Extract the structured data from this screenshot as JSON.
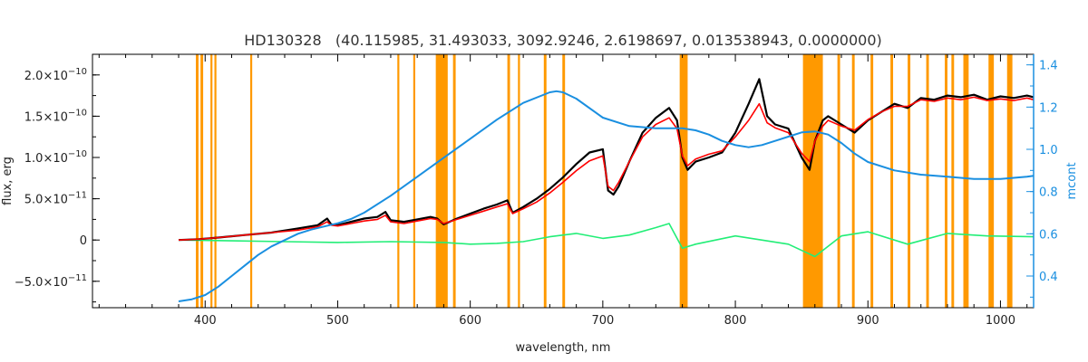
{
  "chart_data": {
    "type": "line",
    "title": "HD130328   (40.115985, 31.493033, 3092.9246, 2.6198697, 0.013538943, 0.0000000)",
    "xlabel": "wavelength, nm",
    "ylabel": "flux, erg",
    "y2label": "mcont",
    "xlim": [
      315,
      1025
    ],
    "ylim": [
      -8.2e-11,
      2.25e-10
    ],
    "y2lim": [
      0.25,
      1.45
    ],
    "xticks": [
      "400",
      "500",
      "600",
      "700",
      "800",
      "900",
      "1000"
    ],
    "xtick_values": [
      400,
      500,
      600,
      700,
      800,
      900,
      1000
    ],
    "yticks": [
      {
        "value": -5e-11,
        "mant": "−5.0×10",
        "exp": "−11"
      },
      {
        "value": 0,
        "mant": "0",
        "exp": ""
      },
      {
        "value": 5e-11,
        "mant": "5.0×10",
        "exp": "−11"
      },
      {
        "value": 1e-10,
        "mant": "1.0×10",
        "exp": "−10"
      },
      {
        "value": 1.5e-10,
        "mant": "1.5×10",
        "exp": "−10"
      },
      {
        "value": 2e-10,
        "mant": "2.0×10",
        "exp": "−10"
      }
    ],
    "y2ticks": [
      "0.4",
      "0.6",
      "0.8",
      "1.0",
      "1.2",
      "1.4"
    ],
    "y2tick_values": [
      0.4,
      0.6,
      0.8,
      1.0,
      1.2,
      1.4
    ],
    "colors": {
      "observed": "#000000",
      "model": "#ff0000",
      "residual": "#22ee77",
      "highlight": "#ffff00",
      "continuum": "#1a8fe0",
      "masked": "#ff9900",
      "axes": "#000000",
      "right_axis": "#1a8fe0"
    },
    "masked_regions": [
      [
        393,
        395
      ],
      [
        396.5,
        398.5
      ],
      [
        404,
        405.5
      ],
      [
        407,
        408.5
      ],
      [
        434,
        435.5
      ],
      [
        545,
        546.5
      ],
      [
        557,
        558.5
      ],
      [
        574,
        583
      ],
      [
        587,
        589
      ],
      [
        628,
        630
      ],
      [
        636,
        637.5
      ],
      [
        655.5,
        657.5
      ],
      [
        669.5,
        671.5
      ],
      [
        758,
        764
      ],
      [
        851,
        866
      ],
      [
        877,
        879
      ],
      [
        888,
        890
      ],
      [
        902,
        904
      ],
      [
        917,
        919
      ],
      [
        930,
        932
      ],
      [
        944,
        946
      ],
      [
        958,
        960
      ],
      [
        963,
        965
      ],
      [
        972,
        976
      ],
      [
        991,
        995
      ],
      [
        1005,
        1009
      ]
    ],
    "series": [
      {
        "name": "observed",
        "x": [
          380,
          395,
          410,
          430,
          450,
          470,
          485,
          492,
          495,
          500,
          510,
          520,
          530,
          536,
          540,
          550,
          560,
          570,
          575,
          580,
          590,
          600,
          610,
          620,
          628,
          632,
          640,
          650,
          660,
          670,
          680,
          690,
          700,
          704,
          708,
          712,
          720,
          730,
          740,
          750,
          756,
          760,
          764,
          770,
          780,
          790,
          800,
          810,
          818,
          824,
          830,
          840,
          850,
          856,
          860,
          866,
          870,
          880,
          890,
          900,
          910,
          920,
          930,
          940,
          950,
          960,
          970,
          980,
          990,
          1000,
          1010,
          1020,
          1025
        ],
        "y": [
          0,
          1e-12,
          3e-12,
          6e-12,
          9e-12,
          1.4e-11,
          1.8e-11,
          2.6e-11,
          1.9e-11,
          1.8e-11,
          2.2e-11,
          2.6e-11,
          2.8e-11,
          3.4e-11,
          2.4e-11,
          2.2e-11,
          2.5e-11,
          2.8e-11,
          2.6e-11,
          1.9e-11,
          2.6e-11,
          3.2e-11,
          3.8e-11,
          4.3e-11,
          4.8e-11,
          3.3e-11,
          4e-11,
          5e-11,
          6.2e-11,
          7.6e-11,
          9.2e-11,
          1.06e-10,
          1.1e-10,
          6e-11,
          5.5e-11,
          6.5e-11,
          9.5e-11,
          1.3e-10,
          1.48e-10,
          1.6e-10,
          1.45e-10,
          1e-10,
          8.5e-11,
          9.5e-11,
          1e-10,
          1.06e-10,
          1.3e-10,
          1.65e-10,
          1.95e-10,
          1.5e-10,
          1.4e-10,
          1.35e-10,
          1e-10,
          8.5e-11,
          1.2e-10,
          1.45e-10,
          1.5e-10,
          1.4e-10,
          1.3e-10,
          1.45e-10,
          1.55e-10,
          1.65e-10,
          1.6e-10,
          1.72e-10,
          1.7e-10,
          1.75e-10,
          1.73e-10,
          1.76e-10,
          1.7e-10,
          1.74e-10,
          1.72e-10,
          1.75e-10,
          1.73e-10
        ]
      },
      {
        "name": "model",
        "x": [
          380,
          395,
          410,
          430,
          450,
          470,
          485,
          492,
          495,
          500,
          510,
          520,
          530,
          536,
          540,
          550,
          560,
          570,
          575,
          580,
          590,
          600,
          610,
          620,
          628,
          632,
          640,
          650,
          660,
          670,
          680,
          690,
          700,
          704,
          708,
          712,
          720,
          730,
          740,
          750,
          756,
          760,
          764,
          770,
          780,
          790,
          800,
          810,
          818,
          824,
          830,
          840,
          850,
          856,
          860,
          866,
          870,
          880,
          890,
          900,
          910,
          920,
          930,
          940,
          950,
          960,
          970,
          980,
          990,
          1000,
          1010,
          1020,
          1025
        ],
        "y": [
          0,
          1e-12,
          3e-12,
          6e-12,
          9e-12,
          1.2e-11,
          1.6e-11,
          2.2e-11,
          1.8e-11,
          1.7e-11,
          2e-11,
          2.3e-11,
          2.5e-11,
          3e-11,
          2.2e-11,
          2e-11,
          2.3e-11,
          2.6e-11,
          2.5e-11,
          2e-11,
          2.5e-11,
          3e-11,
          3.5e-11,
          4e-11,
          4.4e-11,
          3.2e-11,
          3.8e-11,
          4.6e-11,
          5.7e-11,
          7e-11,
          8.4e-11,
          9.6e-11,
          1.02e-10,
          6.5e-11,
          6e-11,
          7e-11,
          9.5e-11,
          1.25e-10,
          1.4e-10,
          1.48e-10,
          1.35e-10,
          1.02e-10,
          9e-11,
          9.8e-11,
          1.04e-10,
          1.08e-10,
          1.25e-10,
          1.45e-10,
          1.65e-10,
          1.42e-10,
          1.36e-10,
          1.3e-10,
          1.05e-10,
          9.5e-11,
          1.2e-10,
          1.38e-10,
          1.45e-10,
          1.38e-10,
          1.33e-10,
          1.46e-10,
          1.55e-10,
          1.62e-10,
          1.62e-10,
          1.7e-10,
          1.68e-10,
          1.72e-10,
          1.7e-10,
          1.73e-10,
          1.69e-10,
          1.71e-10,
          1.69e-10,
          1.72e-10,
          1.7e-10
        ]
      },
      {
        "name": "residual",
        "x": [
          380,
          420,
          460,
          500,
          540,
          580,
          600,
          620,
          640,
          660,
          680,
          700,
          720,
          740,
          750,
          760,
          770,
          800,
          840,
          860,
          880,
          900,
          930,
          960,
          990,
          1025
        ],
        "y": [
          0,
          -1e-12,
          -2e-12,
          -3e-12,
          -2e-12,
          -3e-12,
          -5e-12,
          -4e-12,
          -2e-12,
          4e-12,
          8e-12,
          2e-12,
          6e-12,
          1.5e-11,
          2e-11,
          -1e-11,
          -5e-12,
          5e-12,
          -5e-12,
          -2e-11,
          5e-12,
          1e-11,
          -5e-12,
          8e-12,
          5e-12,
          4e-12
        ]
      },
      {
        "name": "continuum",
        "axis": "right",
        "x": [
          380,
          390,
          400,
          410,
          420,
          430,
          440,
          450,
          460,
          470,
          480,
          490,
          500,
          510,
          520,
          540,
          560,
          580,
          600,
          620,
          640,
          660,
          665,
          670,
          680,
          700,
          720,
          740,
          760,
          770,
          780,
          790,
          800,
          810,
          820,
          830,
          840,
          850,
          860,
          870,
          880,
          890,
          900,
          920,
          940,
          960,
          980,
          1000,
          1020,
          1025
        ],
        "y": [
          0.28,
          0.29,
          0.31,
          0.35,
          0.4,
          0.45,
          0.5,
          0.54,
          0.57,
          0.6,
          0.62,
          0.635,
          0.65,
          0.67,
          0.7,
          0.78,
          0.87,
          0.96,
          1.05,
          1.14,
          1.22,
          1.27,
          1.275,
          1.27,
          1.24,
          1.15,
          1.11,
          1.1,
          1.1,
          1.09,
          1.07,
          1.04,
          1.02,
          1.01,
          1.02,
          1.04,
          1.06,
          1.08,
          1.085,
          1.07,
          1.03,
          0.98,
          0.94,
          0.9,
          0.88,
          0.87,
          0.86,
          0.86,
          0.87,
          0.875
        ]
      }
    ]
  }
}
